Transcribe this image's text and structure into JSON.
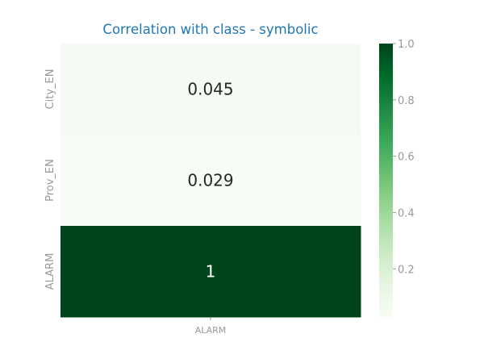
{
  "colors": {
    "title": "#1f77b4",
    "tick_text": "#999999",
    "annot_dark": "#262626",
    "annot_light": "#ffffff",
    "colormap": [
      "#f7fcf5",
      "#e5f5e0",
      "#c7e9c0",
      "#a1d99b",
      "#74c476",
      "#41ab5d",
      "#238b45",
      "#006d2c",
      "#00441b"
    ]
  },
  "chart_data": {
    "type": "heatmap",
    "title": "Correlation with class - symbolic",
    "rows": [
      "City_EN",
      "Prov_EN",
      "ALARM"
    ],
    "columns": [
      "ALARM"
    ],
    "values": [
      [
        0.045
      ],
      [
        0.029
      ],
      [
        1
      ]
    ],
    "value_labels": [
      "0.045",
      "0.029",
      "1"
    ],
    "colormap": "Greens",
    "vmin": 0.029,
    "vmax": 1.0,
    "colorbar_ticks": [
      0.2,
      0.4,
      0.6,
      0.8,
      1.0
    ],
    "colorbar_tick_labels": [
      "0.2",
      "0.4",
      "0.6",
      "0.8",
      "1.0"
    ]
  }
}
